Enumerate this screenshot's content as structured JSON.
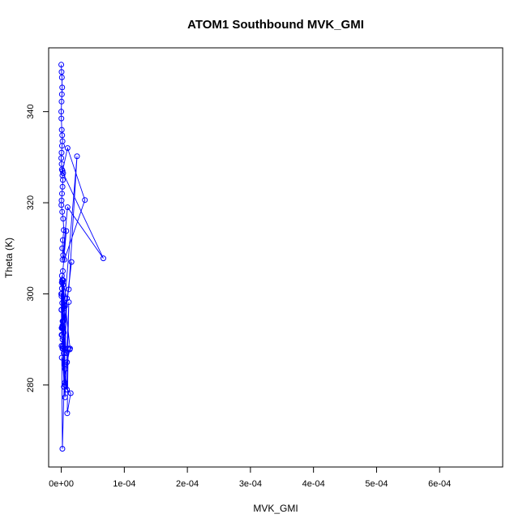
{
  "chart_data": {
    "type": "line",
    "title": "ATOM1 Southbound MVK_GMI",
    "xlabel": "MVK_GMI",
    "ylabel": "Theta (K)",
    "xlim": [
      -2e-05,
      0.0007
    ],
    "ylim": [
      262,
      354
    ],
    "xticks": [
      0,
      0.0001,
      0.0002,
      0.0003,
      0.0004,
      0.0005,
      0.0006
    ],
    "xtick_labels": [
      "0e+00",
      "1e-04",
      "2e-04",
      "3e-04",
      "4e-04",
      "5e-04",
      "6e-04"
    ],
    "yticks": [
      280,
      300,
      320,
      340
    ],
    "ytick_labels": [
      "280",
      "300",
      "320",
      "340"
    ],
    "grid": false,
    "line_style": "both",
    "marker": "open-circle",
    "color": "#0000ff",
    "series": [
      {
        "x": [
          0,
          5e-07,
          1e-06,
          1.5e-06,
          1e-06,
          5e-07,
          0,
          2e-07,
          8e-07,
          1.5e-06,
          2e-06,
          1.2e-06,
          5e-07,
          0,
          6e-07,
          1e-06,
          1.8e-06,
          2.5e-06,
          2e-06,
          1.2e-06,
          5e-07,
          2e-07,
          1.5e-06,
          3e-06,
          4e-06,
          2.5e-06,
          1.5e-06,
          3e-06,
          5e-06,
          3.75e-05,
          1e-05,
          2e-06,
          3e-06,
          6.67e-05,
          1e-05,
          2e-06,
          8e-06,
          2.5e-06,
          1.5e-06,
          4e-06,
          6e-06,
          3e-06,
          2e-06,
          2.5e-05,
          1.2e-05,
          6e-06,
          2e-06,
          7.5e-06,
          3e-06,
          2.2e-06,
          9e-06,
          1.2e-05,
          6e-06,
          5e-07,
          1.62e-05,
          4e-06,
          2e-06,
          6e-06,
          1.1e-05,
          9.5e-06,
          1.5e-05,
          4.5e-06,
          1.8e-06,
          8e-07,
          5.5e-06,
          9.2e-06,
          1.35e-05,
          1.4e-05,
          3e-06,
          1e-06,
          8.5e-07,
          1.5e-06,
          6e-06,
          4e-06,
          1.8e-06,
          7.8e-06,
          2.8e-06,
          1.5e-06,
          2e-06,
          2e-06,
          9e-06,
          5e-06,
          3e-06,
          4.2e-06,
          1e-06,
          5e-07,
          1.2e-06,
          2e-06,
          2.5e-06,
          1.3e-06,
          8e-07,
          4e-07,
          0,
          2e-07,
          6e-07,
          1e-06,
          1.8e-06,
          1.2e-06,
          5e-07
        ],
        "y": [
          350.3,
          348.7,
          347.5,
          345.3,
          343.8,
          342.2,
          340.0,
          338.5,
          336.0,
          334.8,
          333.5,
          332.5,
          331.0,
          329.8,
          328.5,
          327.3,
          326.0,
          325.0,
          323.5,
          322.0,
          320.5,
          319.5,
          318.0,
          316.5,
          314.0,
          311.8,
          310.0,
          308.5,
          307.5,
          320.6,
          332.0,
          327.0,
          326.5,
          307.8,
          319.0,
          307.5,
          313.8,
          305.0,
          303.0,
          296.8,
          283.5,
          294.0,
          292.5,
          330.2,
          301.0,
          297.3,
          293.0,
          287.0,
          303.0,
          288.5,
          279.0,
          298.2,
          277.3,
          288.6,
          307.0,
          291.5,
          290.0,
          288.0,
          288.0,
          273.8,
          278.2,
          279.6,
          266.0,
          286.0,
          280.5,
          285.0,
          287.8,
          288.0,
          302.0,
          304.0,
          302.5,
          292.8,
          280.0,
          287.0,
          288.0,
          287.0,
          287.9,
          298.0,
          302.5,
          303.0,
          299.0,
          284.5,
          290.5,
          279.6,
          301.2,
          296.5,
          291.0,
          294.0,
          292.7,
          291.0,
          300.0,
          299.5,
          300.0,
          296.5,
          292.5,
          292.5,
          293.0,
          292.6,
          291.0
        ]
      }
    ]
  }
}
